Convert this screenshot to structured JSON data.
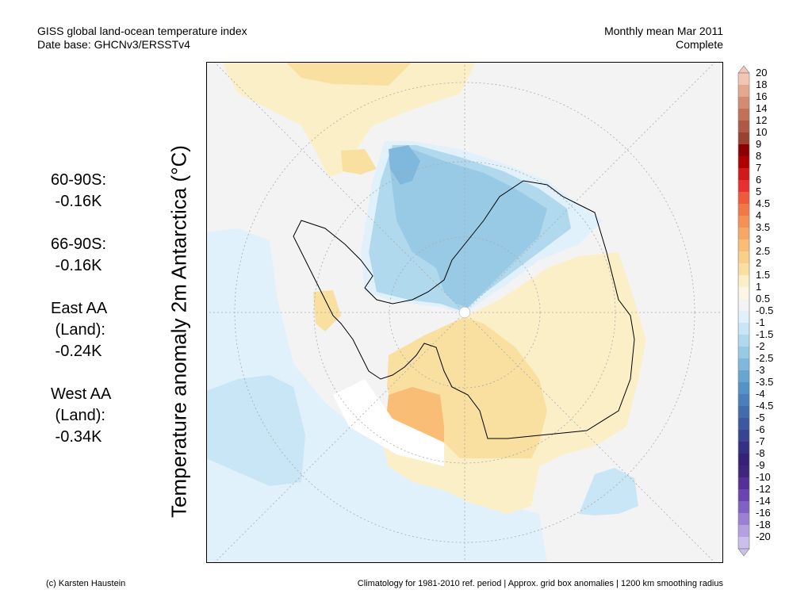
{
  "header": {
    "title_line1": "GISS global land-ocean temperature index",
    "title_line2": "Date base: GHCNv3/ERSSTv4",
    "period_line1": "Monthly mean Mar 2011",
    "period_line2": "Complete"
  },
  "stats": [
    {
      "label": "60-90S:",
      "value": " -0.16K"
    },
    {
      "label": "66-90S:",
      "value": " -0.16K"
    },
    {
      "label": "East AA\n (Land):",
      "value": " -0.24K"
    },
    {
      "label": "West AA\n (Land):",
      "value": " -0.34K"
    }
  ],
  "y_label": "Temperature anomaly 2m Antarctica (°C)",
  "footer": {
    "credit": "(c) Karsten Haustein",
    "note": "Climatology for 1981-2010 ref. period | Approx. grid box anomalies | 1200 km smoothing radius"
  },
  "colorbar": {
    "labels": [
      "20",
      "18",
      "16",
      "14",
      "12",
      "10",
      "9",
      "8",
      "7",
      "6",
      "5",
      "4.5",
      "4",
      "3.5",
      "3",
      "2.5",
      "2",
      "1.5",
      "1",
      "0.5",
      "-0.5",
      "-1",
      "-1.5",
      "-2",
      "-2.5",
      "-3",
      "-3.5",
      "-4",
      "-4.5",
      "-5",
      "-6",
      "-7",
      "-8",
      "-9",
      "-10",
      "-12",
      "-14",
      "-16",
      "-18",
      "-20"
    ],
    "colors": [
      "#f3c6b4",
      "#e4a891",
      "#d38c73",
      "#c27159",
      "#ae5845",
      "#9b4132",
      "#8c0000",
      "#b00000",
      "#d21818",
      "#e83030",
      "#ef5a3a",
      "#f37845",
      "#f69155",
      "#f8a865",
      "#f9bd76",
      "#f9d08a",
      "#f9e0a0",
      "#fbefc8",
      "#fdf6e4",
      "#f3f3f3",
      "#e0f1fb",
      "#c8e6f5",
      "#b0d9ee",
      "#98cae5",
      "#7fb8dc",
      "#68a6d2",
      "#5593c7",
      "#4a7fbb",
      "#436cad",
      "#3d58a0",
      "#374492",
      "#343184",
      "#352276",
      "#40257f",
      "#532f97",
      "#6a44b0",
      "#8261c4",
      "#9b80d3",
      "#b5a0e1",
      "#ccbfee"
    ]
  }
}
